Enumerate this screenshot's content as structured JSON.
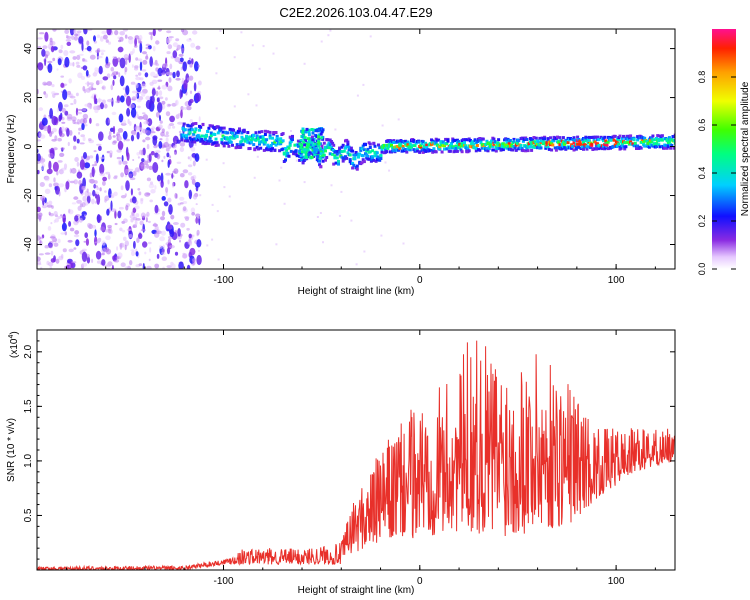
{
  "figure_title": "C2E2.2026.103.04.47.E29",
  "chart_data": [
    {
      "type": "heatmap",
      "title": "C2E2.2026.103.04.47.E29",
      "xlabel": "Height of straight line (km)",
      "ylabel": "Frequency (Hz)",
      "xlim": [
        -195,
        130
      ],
      "ylim": [
        -50,
        48
      ],
      "xticks": [
        -100,
        0,
        100
      ],
      "yticks": [
        -40,
        -20,
        0,
        20,
        40
      ],
      "xtick_labels": [
        "-100",
        "0",
        "100"
      ],
      "ytick_labels": [
        "-40",
        "-20",
        "0",
        "20",
        "40"
      ],
      "colorbar": {
        "label": "Normalized spectral amplitude",
        "range": [
          0,
          1
        ],
        "ticks": [
          0.0,
          0.2,
          0.4,
          0.6,
          0.8
        ],
        "tick_labels": [
          "0.0",
          "0.2",
          "0.4",
          "0.6",
          "0.8"
        ]
      },
      "regions": [
        {
          "x_range": [
            -195,
            -120
          ],
          "y_range": [
            -50,
            48
          ],
          "amplitude": [
            0.05,
            0.25
          ],
          "description_key": "noise"
        },
        {
          "x_range": [
            -122,
            -20
          ],
          "y_center": [
            6,
            -6
          ],
          "width_hz": 8,
          "amplitude": [
            0.2,
            0.5
          ]
        },
        {
          "x_range": [
            -20,
            130
          ],
          "y_center": [
            0,
            2
          ],
          "width_hz": 5,
          "amplitude": [
            0.3,
            0.95
          ]
        }
      ]
    },
    {
      "type": "line",
      "xlabel": "Height of straight line (km)",
      "ylabel": "SNR (10 * v/v)",
      "y_scale_label": "(x10",
      "y_scale_exp": "4",
      "y_scale_close": ")",
      "xlim": [
        -195,
        130
      ],
      "ylim": [
        0,
        2.2
      ],
      "xticks": [
        -100,
        0,
        100
      ],
      "yticks": [
        0.5,
        1.0,
        1.5,
        2.0
      ],
      "xtick_labels": [
        "-100",
        "0",
        "100"
      ],
      "ytick_labels": [
        "0.5",
        "1.0",
        "1.5",
        "2.0"
      ],
      "series": [
        {
          "name": "SNR",
          "color": "#e8302a",
          "envelope_x": [
            -195,
            -120,
            -100,
            -90,
            -60,
            -40,
            -35,
            -20,
            0,
            20,
            25,
            40,
            60,
            75,
            90,
            110,
            130
          ],
          "envelope_low": [
            0.0,
            0.0,
            0.05,
            0.05,
            0.05,
            0.05,
            0.15,
            0.25,
            0.3,
            0.35,
            0.35,
            0.3,
            0.35,
            0.4,
            0.65,
            0.9,
            1.0
          ],
          "envelope_high": [
            0.03,
            0.04,
            0.1,
            0.2,
            0.2,
            0.25,
            0.6,
            1.1,
            1.6,
            1.8,
            2.2,
            2.0,
            2.0,
            1.8,
            1.3,
            1.3,
            1.3
          ]
        }
      ]
    }
  ]
}
